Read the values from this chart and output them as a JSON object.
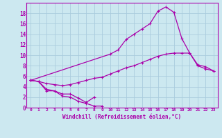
{
  "bg_color": "#cce8f0",
  "line_color": "#aa00aa",
  "grid_color": "#aaccdd",
  "xlabel": "Windchill (Refroidissement éolien,°C)",
  "xlim": [
    -0.5,
    23.5
  ],
  "ylim": [
    0,
    20
  ],
  "xticks": [
    0,
    1,
    2,
    3,
    4,
    5,
    6,
    7,
    8,
    9,
    10,
    11,
    12,
    13,
    14,
    15,
    16,
    17,
    18,
    19,
    20,
    21,
    22,
    23
  ],
  "yticks": [
    0,
    2,
    4,
    6,
    8,
    10,
    12,
    14,
    16,
    18
  ],
  "series1_x": [
    0,
    1,
    2,
    3,
    4,
    5,
    6,
    7,
    8,
    9
  ],
  "series1_y": [
    5.2,
    5.0,
    3.2,
    3.2,
    2.2,
    2.0,
    1.2,
    0.8,
    0.3,
    0.3
  ],
  "series2_x": [
    0,
    1,
    2,
    3,
    4,
    5,
    6,
    7,
    8
  ],
  "series2_y": [
    5.2,
    5.0,
    3.5,
    3.2,
    2.6,
    2.6,
    1.8,
    1.0,
    2.0
  ],
  "series3_x": [
    0,
    10,
    11,
    12,
    13,
    14,
    15,
    16,
    17,
    18,
    19,
    20,
    21,
    22,
    23
  ],
  "series3_y": [
    5.2,
    10.2,
    11.0,
    13.0,
    14.0,
    15.0,
    16.0,
    18.4,
    19.2,
    18.2,
    13.2,
    10.4,
    8.2,
    7.8,
    7.0
  ],
  "series4_x": [
    0,
    1,
    2,
    3,
    4,
    5,
    6,
    7,
    8,
    9,
    10,
    11,
    12,
    13,
    14,
    15,
    16,
    17,
    18,
    19,
    20,
    21,
    22,
    23
  ],
  "series4_y": [
    5.2,
    5.0,
    4.6,
    4.4,
    4.2,
    4.4,
    4.8,
    5.2,
    5.6,
    5.8,
    6.4,
    7.0,
    7.6,
    8.0,
    8.6,
    9.2,
    9.8,
    10.2,
    10.4,
    10.4,
    10.4,
    8.0,
    7.4,
    7.0
  ]
}
